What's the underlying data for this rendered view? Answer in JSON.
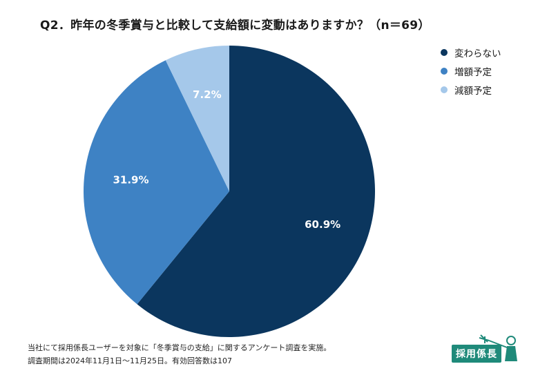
{
  "title": "Q2．昨年の冬季賞与と比較して支給額に変動はありますか？（n＝69）",
  "chart_data": {
    "type": "pie",
    "slices": [
      {
        "label": "変わらない",
        "value": 60.9,
        "value_label": "60.9%",
        "color": "#0b365e"
      },
      {
        "label": "増額予定",
        "value": 31.9,
        "value_label": "31.9%",
        "color": "#3e82c4"
      },
      {
        "label": "減額予定",
        "value": 7.2,
        "value_label": "7.2%",
        "color": "#a5c8ea"
      }
    ],
    "legend_position": "top-right"
  },
  "footer": {
    "line1": "当社にて採用係長ユーザーを対象に「冬季賞与の支給」に関するアンケート調査を実施。",
    "line2": "調査期間は2024年11月1日〜11月25日。有効回答数は107"
  },
  "logo": {
    "text": "採用係長"
  }
}
